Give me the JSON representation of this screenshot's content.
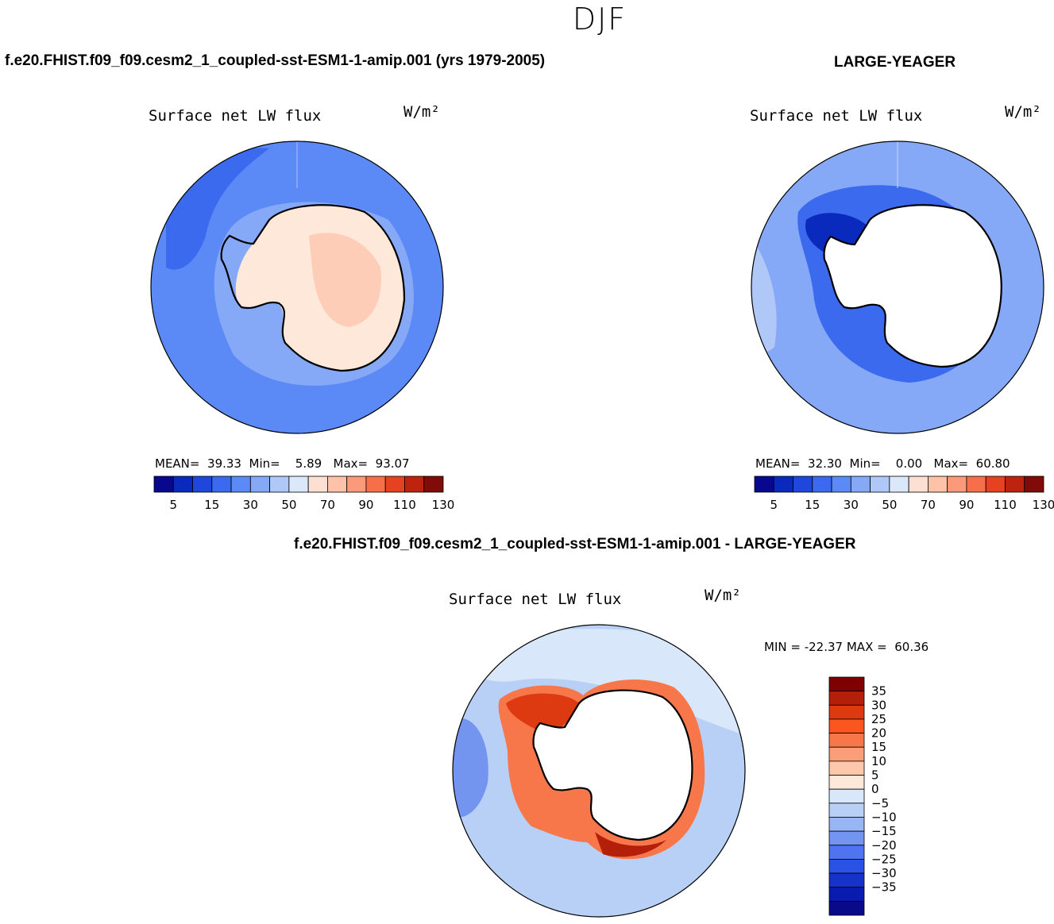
{
  "season": "DJF",
  "panels": {
    "model": {
      "title": "f.e20.FHIST.f09_f09.cesm2_1_coupled-sst-ESM1-1-amip.001 (yrs 1979-2005)",
      "variable": "Surface net LW flux",
      "units": "W/m²",
      "mean_label": "MEAN=",
      "mean": "39.33",
      "min_label": "Min=",
      "min": "5.89",
      "max_label": "Max=",
      "max": "93.07"
    },
    "obs": {
      "title": "LARGE-YEAGER",
      "variable": "Surface net LW flux",
      "units": "W/m²",
      "mean_label": "MEAN=",
      "mean": "32.30",
      "min_label": "Min=",
      "min": "0.00",
      "max_label": "Max=",
      "max": "60.80"
    },
    "diff": {
      "title": "f.e20.FHIST.f09_f09.cesm2_1_coupled-sst-ESM1-1-amip.001 - LARGE-YEAGER",
      "variable": "Surface net LW flux",
      "units": "W/m²",
      "min_label": "MIN =",
      "min": "-22.37",
      "max_label": "MAX =",
      "max": "60.36"
    }
  },
  "colorbars": {
    "abs": {
      "colors": [
        "#08088e",
        "#0a29bd",
        "#1f47dc",
        "#3b6aef",
        "#5b8af7",
        "#86a9f7",
        "#b0c8f8",
        "#dae8fa",
        "#fde0d2",
        "#fdc2a8",
        "#fb9a7a",
        "#f66f4b",
        "#e64222",
        "#bc2410",
        "#7f0c08"
      ],
      "labels": [
        "5",
        "15",
        "30",
        "50",
        "70",
        "90",
        "110",
        "130"
      ]
    },
    "diff": {
      "colors": [
        "#7f0000",
        "#b41f0a",
        "#de3a12",
        "#fb5520",
        "#f8774a",
        "#fb9d78",
        "#fdc7ab",
        "#fde8da",
        "#d8e8fa",
        "#b9d0f6",
        "#98b6f4",
        "#7394ef",
        "#4e74ef",
        "#2a52e4",
        "#1532c9",
        "#0a1cb0",
        "#080a8a"
      ],
      "labels": [
        "35",
        "30",
        "25",
        "20",
        "15",
        "10",
        "5",
        "0",
        "-5",
        "-10",
        "-15",
        "-20",
        "-25",
        "-30",
        "-35"
      ]
    }
  },
  "map_colors": {
    "ocean_model": "#5b8af7",
    "ocean_model_light": "#86a9f7",
    "ocean_model_dark": "#3b6aef",
    "land_model": "#fde8da",
    "land_model_warm": "#fdcdb8",
    "ocean_obs": "#86a9f7",
    "ocean_obs_light": "#b0c8f8",
    "ocean_obs_dark": "#3b6aef",
    "obs_dark_blue": "#0a29bd",
    "land_missing": "#ffffff",
    "diff_ocean": "#b9d0f6",
    "diff_ocean_light": "#d8e8fa",
    "diff_ocean_dark": "#7394ef",
    "diff_red": "#de3a12",
    "diff_orange": "#f8774a",
    "diff_dark_red": "#b41f0a",
    "coast": "#000000"
  }
}
